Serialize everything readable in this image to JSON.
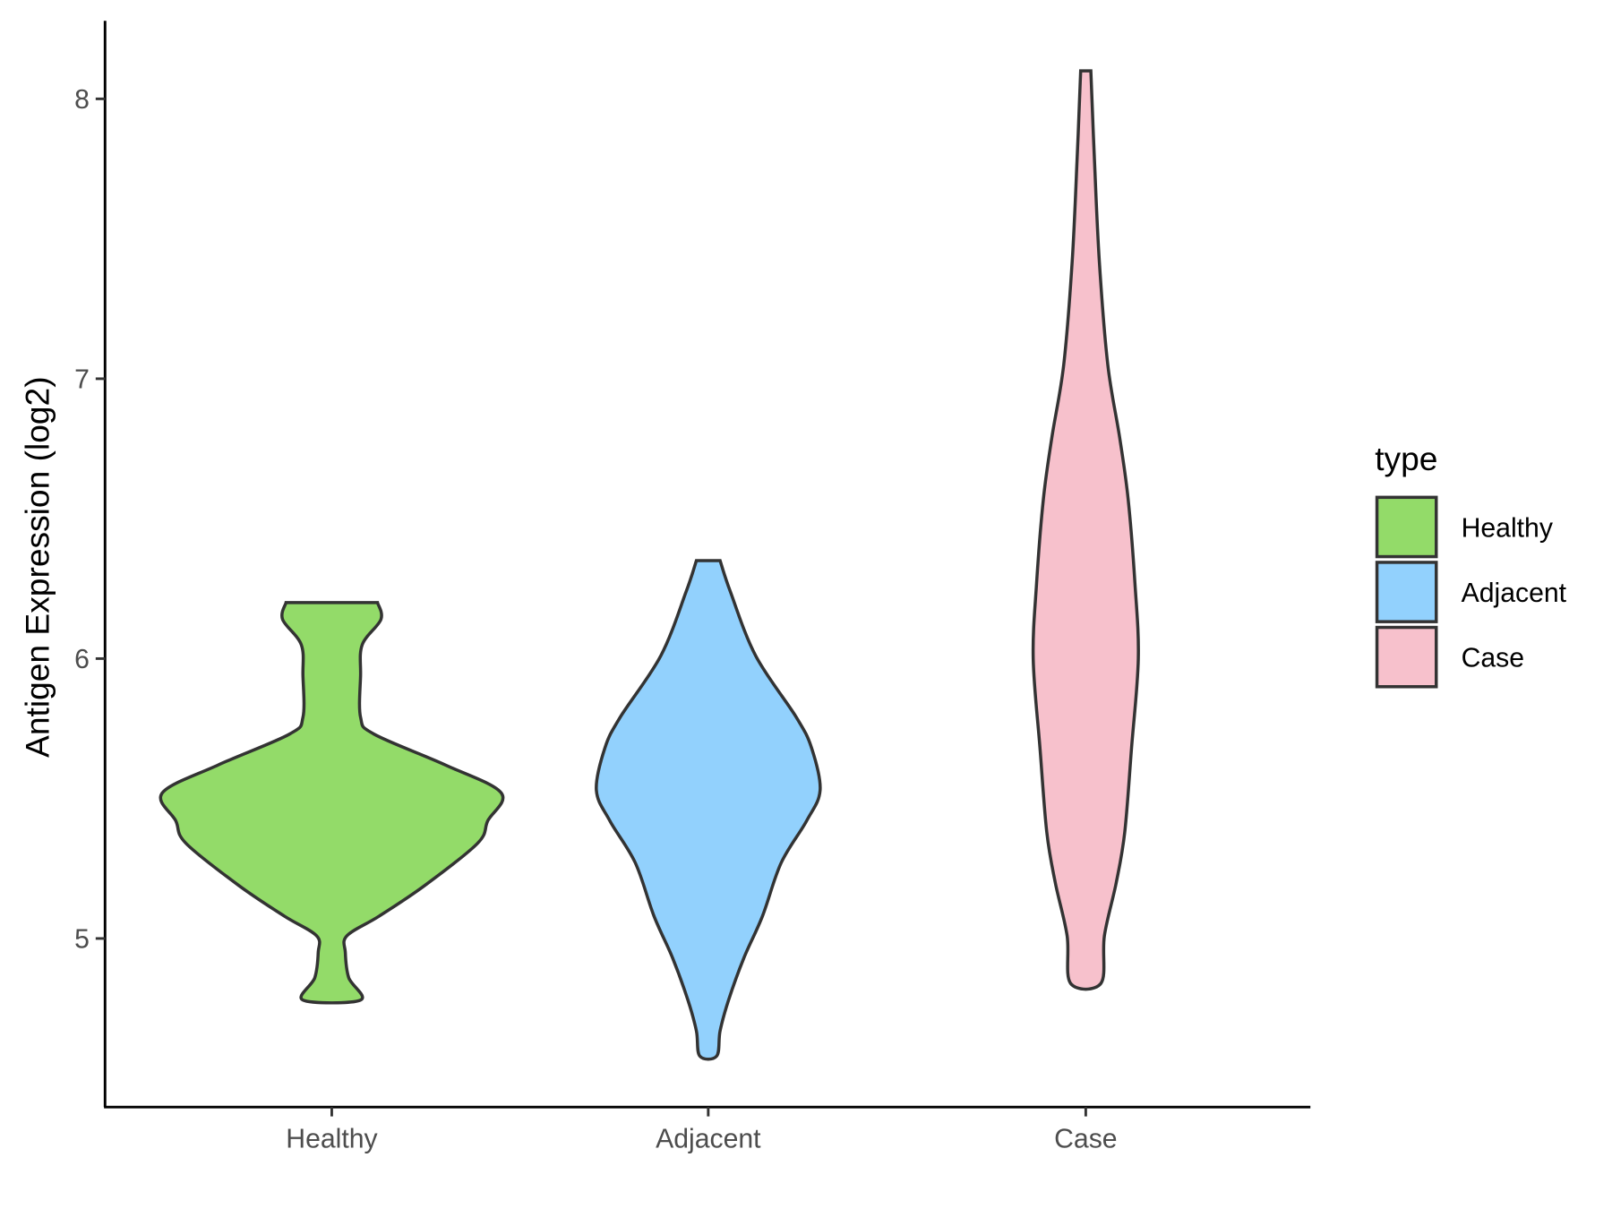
{
  "chart_data": {
    "type": "violin",
    "title": "",
    "xlabel": "",
    "ylabel": "Antigen Expression (log2)",
    "ylim": [
      4.45,
      8.28
    ],
    "yticks": [
      5,
      6,
      7,
      8
    ],
    "categories": [
      "Healthy",
      "Adjacent",
      "Case"
    ],
    "grid": false,
    "legend": {
      "title": "type",
      "position": "right",
      "entries": [
        "Healthy",
        "Adjacent",
        "Case"
      ]
    },
    "colors": {
      "Healthy": "#93DB69",
      "Adjacent": "#92D1FD",
      "Case": "#F7C1CC"
    },
    "outline_color": "#333333",
    "series": [
      {
        "name": "Healthy",
        "density_profile": [
          [
            6.2,
            0.27
          ],
          [
            6.14,
            0.29
          ],
          [
            6.05,
            0.18
          ],
          [
            5.94,
            0.17
          ],
          [
            5.79,
            0.17
          ],
          [
            5.73,
            0.25
          ],
          [
            5.62,
            0.67
          ],
          [
            5.52,
            1.0
          ],
          [
            5.42,
            0.92
          ],
          [
            5.34,
            0.86
          ],
          [
            5.19,
            0.55
          ],
          [
            5.08,
            0.28
          ],
          [
            5.01,
            0.09
          ],
          [
            4.95,
            0.08
          ],
          [
            4.86,
            0.1
          ],
          [
            4.78,
            0.17
          ]
        ]
      },
      {
        "name": "Adjacent",
        "density_profile": [
          [
            6.35,
            0.07
          ],
          [
            6.24,
            0.13
          ],
          [
            6.01,
            0.28
          ],
          [
            5.79,
            0.52
          ],
          [
            5.68,
            0.61
          ],
          [
            5.53,
            0.66
          ],
          [
            5.42,
            0.58
          ],
          [
            5.27,
            0.43
          ],
          [
            5.08,
            0.32
          ],
          [
            4.93,
            0.21
          ],
          [
            4.78,
            0.12
          ],
          [
            4.67,
            0.07
          ],
          [
            4.58,
            0.05
          ]
        ]
      },
      {
        "name": "Case",
        "density_profile": [
          [
            8.1,
            0.03
          ],
          [
            7.8,
            0.05
          ],
          [
            7.42,
            0.08
          ],
          [
            7.05,
            0.13
          ],
          [
            6.79,
            0.2
          ],
          [
            6.57,
            0.25
          ],
          [
            6.27,
            0.29
          ],
          [
            6.0,
            0.31
          ],
          [
            5.68,
            0.27
          ],
          [
            5.38,
            0.23
          ],
          [
            5.2,
            0.18
          ],
          [
            5.01,
            0.11
          ],
          [
            4.84,
            0.09
          ]
        ]
      }
    ]
  }
}
